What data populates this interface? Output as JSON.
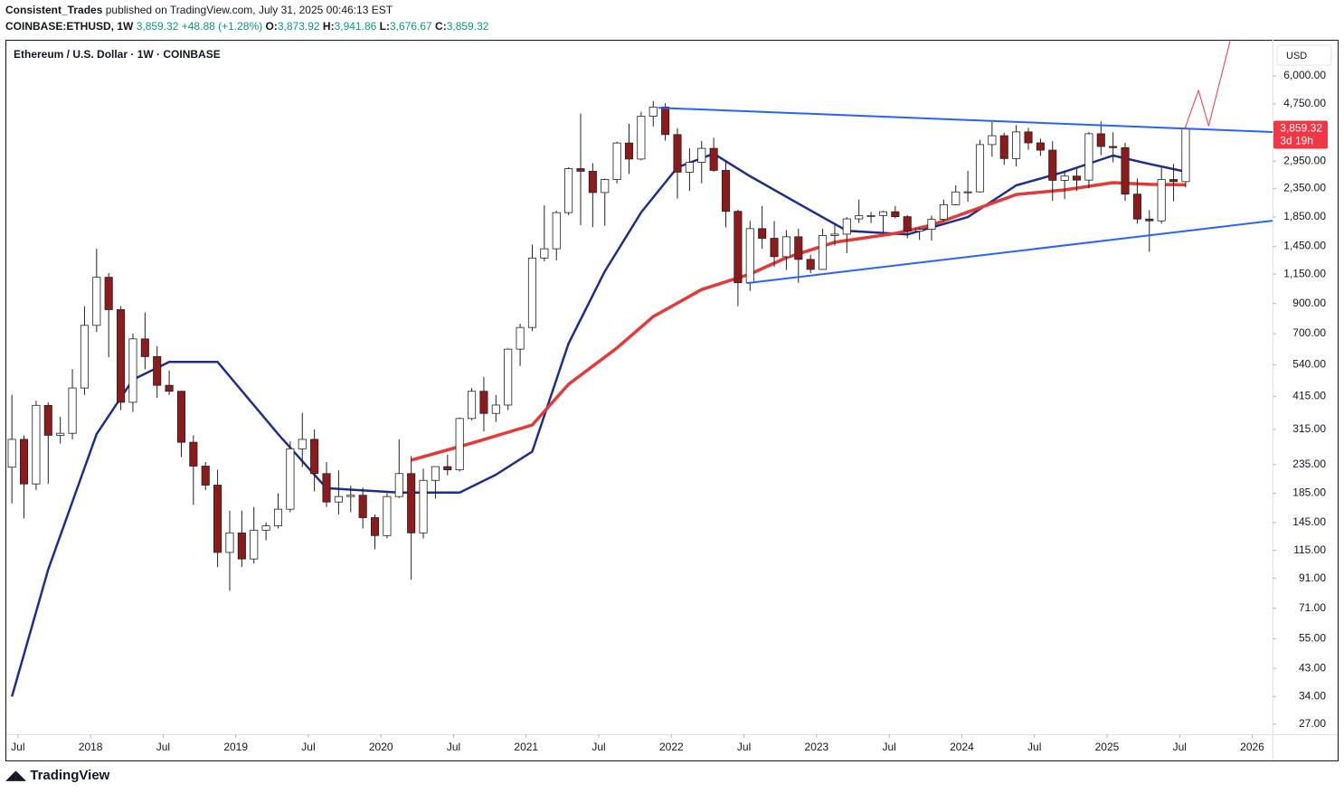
{
  "header": {
    "publisher": "Consistent_Trades",
    "published": "published on TradingView.com, July 31, 2025 00:46:13 EST",
    "symbol": "COINBASE:ETHUSD, 1W",
    "last": "3,859.32",
    "change": "+48.88 (+1.28%)",
    "open_label": "O:",
    "open": "3,873.92",
    "high_label": "H:",
    "high": "3,941.86",
    "low_label": "L:",
    "low": "3,676.67",
    "close_label": "C:",
    "close": "3,859.32"
  },
  "footer": {
    "brand": "TradingView"
  },
  "chart_data": {
    "type": "candlestick",
    "title": "Ethereum / U.S. Dollar · 1W · COINBASE",
    "currency": "USD",
    "last_price": {
      "value": 3859.32,
      "label": "3,859.32",
      "countdown": "3d 19h",
      "color": "#f23645"
    },
    "log_scale": true,
    "up_color": "#ffffff",
    "down_color": "#8e1b1b",
    "wick_color": "#222222",
    "x": [
      "2017-06",
      "2017-07",
      "2017-08",
      "2017-09",
      "2017-10",
      "2017-11",
      "2017-12",
      "2018-01",
      "2018-02",
      "2018-03",
      "2018-04",
      "2018-05",
      "2018-06",
      "2018-07",
      "2018-08",
      "2018-09",
      "2018-10",
      "2018-11",
      "2018-12",
      "2019-01",
      "2019-02",
      "2019-03",
      "2019-04",
      "2019-05",
      "2019-06",
      "2019-07",
      "2019-08",
      "2019-09",
      "2019-10",
      "2019-11",
      "2019-12",
      "2020-01",
      "2020-02",
      "2020-03",
      "2020-04",
      "2020-05",
      "2020-06",
      "2020-07",
      "2020-08",
      "2020-09",
      "2020-10",
      "2020-11",
      "2020-12",
      "2021-01",
      "2021-02",
      "2021-03",
      "2021-04",
      "2021-05",
      "2021-06",
      "2021-07",
      "2021-08",
      "2021-09",
      "2021-10",
      "2021-11",
      "2021-12",
      "2022-01",
      "2022-02",
      "2022-03",
      "2022-04",
      "2022-05",
      "2022-06",
      "2022-07",
      "2022-08",
      "2022-09",
      "2022-10",
      "2022-11",
      "2022-12",
      "2023-01",
      "2023-02",
      "2023-03",
      "2023-04",
      "2023-05",
      "2023-06",
      "2023-07",
      "2023-08",
      "2023-09",
      "2023-10",
      "2023-11",
      "2023-12",
      "2024-01",
      "2024-02",
      "2024-03",
      "2024-04",
      "2024-05",
      "2024-06",
      "2024-07",
      "2024-08",
      "2024-09",
      "2024-10",
      "2024-11",
      "2024-12",
      "2025-01",
      "2025-02",
      "2025-03",
      "2025-04",
      "2025-05",
      "2025-06",
      "2025-07"
    ],
    "open": [
      230,
      290,
      200,
      385,
      300,
      305,
      445,
      750,
      1120,
      855,
      395,
      670,
      578,
      455,
      433,
      283,
      232,
      198,
      113,
      133,
      107,
      136,
      141,
      162,
      268,
      290,
      218,
      172,
      180,
      182,
      151,
      130,
      180,
      218,
      133,
      206,
      231,
      225,
      345,
      433,
      360,
      386,
      615,
      737,
      1315,
      1420,
      1920,
      2770,
      2710,
      2270,
      2530,
      3430,
      3000,
      4290,
      4630,
      3680,
      2690,
      2920,
      3280,
      2730,
      1940,
      1070,
      1680,
      1550,
      1330,
      1570,
      1300,
      1196,
      1586,
      1605,
      1822,
      1870,
      1874,
      1934,
      1856,
      1645,
      1671,
      1815,
      2050,
      2281,
      2283,
      3385,
      3646,
      3013,
      3763,
      3434,
      3232,
      2513,
      2603,
      2518,
      3705,
      3333,
      3300,
      2240,
      1820,
      1793,
      2530,
      2486
    ],
    "high": [
      420,
      300,
      400,
      395,
      350,
      520,
      880,
      1420,
      1160,
      880,
      700,
      835,
      630,
      515,
      435,
      300,
      240,
      225,
      160,
      160,
      165,
      145,
      185,
      285,
      362,
      315,
      240,
      224,
      197,
      194,
      155,
      185,
      290,
      252,
      227,
      227,
      255,
      348,
      445,
      488,
      420,
      620,
      760,
      1470,
      2040,
      1950,
      2800,
      4380,
      2900,
      2550,
      3470,
      4030,
      4450,
      4870,
      4780,
      3880,
      3280,
      3490,
      3580,
      2950,
      1970,
      1790,
      2030,
      1790,
      1660,
      1680,
      1350,
      1680,
      1740,
      1850,
      2140,
      1930,
      1950,
      2030,
      1880,
      1690,
      1870,
      2140,
      2410,
      2720,
      3520,
      4090,
      3730,
      3980,
      3890,
      3560,
      3480,
      2730,
      2770,
      3760,
      4110,
      3750,
      3440,
      2550,
      1960,
      2790,
      2880,
      3941.86
    ],
    "low": [
      170,
      150,
      190,
      200,
      280,
      290,
      420,
      710,
      575,
      370,
      365,
      520,
      410,
      420,
      250,
      168,
      190,
      100,
      82,
      100,
      103,
      125,
      138,
      158,
      230,
      188,
      165,
      155,
      158,
      138,
      116,
      127,
      178,
      90,
      127,
      177,
      215,
      222,
      340,
      310,
      335,
      370,
      535,
      715,
      1280,
      1290,
      1880,
      1730,
      1700,
      1720,
      2450,
      2650,
      2970,
      3940,
      3500,
      2160,
      2300,
      2450,
      2700,
      1700,
      880,
      1000,
      1420,
      1220,
      1190,
      1070,
      1160,
      1190,
      1460,
      1370,
      1760,
      1760,
      1620,
      1830,
      1550,
      1530,
      1520,
      1780,
      2040,
      2100,
      2270,
      3060,
      2860,
      2820,
      3240,
      3080,
      2120,
      2150,
      2300,
      2350,
      3100,
      2920,
      2120,
      1750,
      1385,
      1750,
      2110,
      2370
    ],
    "close": [
      290,
      200,
      385,
      300,
      305,
      445,
      750,
      1120,
      855,
      395,
      670,
      578,
      455,
      433,
      283,
      232,
      198,
      113,
      133,
      107,
      136,
      141,
      162,
      268,
      290,
      218,
      172,
      180,
      182,
      151,
      130,
      180,
      218,
      133,
      206,
      231,
      225,
      345,
      433,
      360,
      386,
      615,
      737,
      1315,
      1420,
      1920,
      2770,
      2710,
      2270,
      2530,
      3430,
      3000,
      4290,
      4630,
      3680,
      2690,
      2920,
      3280,
      2730,
      1940,
      1070,
      1680,
      1550,
      1330,
      1570,
      1300,
      1196,
      1586,
      1605,
      1822,
      1870,
      1874,
      1934,
      1856,
      1645,
      1671,
      1815,
      2050,
      2281,
      2283,
      3385,
      3646,
      3013,
      3763,
      3434,
      3232,
      2513,
      2603,
      2518,
      3705,
      3333,
      3300,
      2240,
      1820,
      1793,
      2530,
      2486,
      3859.32
    ],
    "lines": [
      {
        "color": "#1c2f8c",
        "width": 2.5,
        "x": [
          "2017-06",
          "2017-09",
          "2018-01",
          "2018-04",
          "2018-07",
          "2018-11",
          "2019-04",
          "2019-08",
          "2020-02",
          "2020-07",
          "2020-10",
          "2021-01",
          "2021-04",
          "2021-07",
          "2021-10",
          "2022-01",
          "2022-04",
          "2022-07",
          "2022-11",
          "2023-03",
          "2023-08",
          "2024-01",
          "2024-05",
          "2024-09",
          "2025-01",
          "2025-04",
          "2025-07"
        ],
        "values": [
          34,
          98,
          303,
          477,
          553,
          553,
          303,
          193,
          186,
          186,
          216,
          262,
          645,
          1177,
          1923,
          2800,
          3140,
          2600,
          2070,
          1650,
          1600,
          1850,
          2410,
          2700,
          3090,
          2880,
          2700
        ]
      },
      {
        "color": "#e53935",
        "width": 3.5,
        "x": [
          "2020-03",
          "2020-08",
          "2021-01",
          "2021-04",
          "2021-08",
          "2021-11",
          "2022-03",
          "2022-07",
          "2022-10",
          "2023-02",
          "2023-07",
          "2023-10",
          "2024-02",
          "2024-05",
          "2024-09",
          "2025-01",
          "2025-04",
          "2025-07"
        ],
        "values": [
          244,
          281,
          327,
          459,
          621,
          807,
          1011,
          1150,
          1318,
          1500,
          1614,
          1729,
          2000,
          2233,
          2320,
          2465,
          2430,
          2420
        ]
      }
    ],
    "drawings": [
      {
        "color": "#2962ff",
        "width": 2,
        "x": [
          2021.91,
          2026.14
        ],
        "values": [
          4600,
          3760
        ]
      },
      {
        "color": "#2962ff",
        "width": 2,
        "x": [
          2022.52,
          2026.14
        ],
        "values": [
          1067,
          1795
        ]
      },
      {
        "color": "#f23645",
        "width": 1,
        "x": [
          2025.536,
          2025.63,
          2025.7,
          2025.85
        ],
        "values": [
          3859.32,
          5320,
          3960,
          8110
        ]
      }
    ],
    "xlim": [
      2017.42,
      2026.14
    ],
    "ylim": [
      25.2,
      8110
    ],
    "xticks": [
      {
        "value": 2017.5,
        "label": "Jul"
      },
      2018,
      {
        "value": 2018.5,
        "label": "Jul"
      },
      2019,
      {
        "value": 2019.5,
        "label": "Jul"
      },
      2020,
      {
        "value": 2020.5,
        "label": "Jul"
      },
      2021,
      {
        "value": 2021.5,
        "label": "Jul"
      },
      2022,
      {
        "value": 2022.5,
        "label": "Jul"
      },
      2023,
      {
        "value": 2023.5,
        "label": "Jul"
      },
      2024,
      {
        "value": 2024.5,
        "label": "Jul"
      },
      2025,
      {
        "value": 2025.5,
        "label": "Jul"
      },
      2026
    ],
    "yticks": [
      {
        "value": 6000,
        "label": "6,000.00"
      },
      {
        "value": 4750,
        "label": "4,750.00"
      },
      {
        "value": 2950,
        "label": "2,950.00"
      },
      {
        "value": 2350,
        "label": "2,350.00"
      },
      {
        "value": 1850,
        "label": "1,850.00"
      },
      {
        "value": 1450,
        "label": "1,450.00"
      },
      {
        "value": 1150,
        "label": "1,150.00"
      },
      {
        "value": 900,
        "label": "900.00"
      },
      {
        "value": 700,
        "label": "700.00"
      },
      {
        "value": 540,
        "label": "540.00"
      },
      {
        "value": 415,
        "label": "415.00"
      },
      {
        "value": 315,
        "label": "315.00"
      },
      {
        "value": 235,
        "label": "235.00"
      },
      {
        "value": 185,
        "label": "185.00"
      },
      {
        "value": 145,
        "label": "145.00"
      },
      {
        "value": 115,
        "label": "115.00"
      },
      {
        "value": 91,
        "label": "91.00"
      },
      {
        "value": 71,
        "label": "71.00"
      },
      {
        "value": 55,
        "label": "55.00"
      },
      {
        "value": 43,
        "label": "43.00"
      },
      {
        "value": 34,
        "label": "34.00"
      },
      {
        "value": 27,
        "label": "27.00"
      }
    ]
  }
}
